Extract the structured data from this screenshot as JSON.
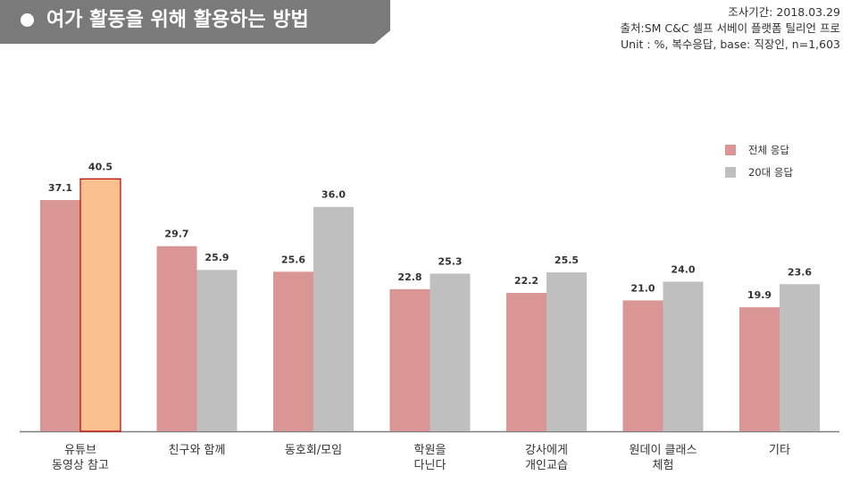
{
  "header": {
    "title": "여가 활동을 위해 활용하는 방법",
    "survey_period": "조사기간: 2018.03.29",
    "source": "출처:SM C&C 셀프 서베이 플랫폼 틸리언 프로",
    "unit_note": "Unit : %, 복수응답, base: 직장인, n=1,603"
  },
  "chart_data": {
    "type": "bar",
    "categories": [
      [
        "유튜브",
        "동영상 참고"
      ],
      [
        "친구와 함께"
      ],
      [
        "동호회/모임"
      ],
      [
        "학원을",
        "다닌다"
      ],
      [
        "강사에게",
        "개인교습"
      ],
      [
        "원데이 클래스",
        "체험"
      ],
      [
        "기타"
      ]
    ],
    "series": [
      {
        "name": "전체 응답",
        "values": [
          37.1,
          29.7,
          25.6,
          22.8,
          22.2,
          21.0,
          19.9
        ],
        "color": "#d99694"
      },
      {
        "name": "20대 응답",
        "values": [
          40.5,
          25.9,
          36.0,
          25.3,
          25.5,
          24.0,
          23.6
        ],
        "color": "#bfbfbf"
      }
    ],
    "value_labels": [
      [
        "37.1",
        "29.7",
        "25.6",
        "22.8",
        "22.2",
        "21.0",
        "19.9"
      ],
      [
        "40.5",
        "25.9",
        "36.0",
        "25.3",
        "25.5",
        "24.0",
        "23.6"
      ]
    ],
    "highlight": {
      "series": 1,
      "index": 0,
      "color": "#fac090",
      "border": "#c00000"
    },
    "legend_position": "top-right",
    "grid": false
  }
}
